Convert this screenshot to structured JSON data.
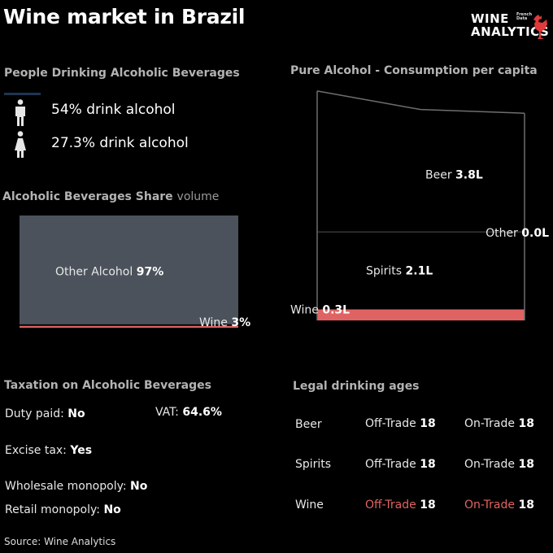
{
  "header": {
    "title": "Wine market in Brazil",
    "logo_line1": "WINE",
    "logo_line2": "ANALYTICS",
    "logo_tag1": "French",
    "logo_tag2": "Data",
    "logo_icon": "rooster-icon",
    "brand_color": "#e03a3a"
  },
  "drinkers": {
    "heading": "People Drinking Alcoholic Beverages",
    "male_icon": "man-icon",
    "female_icon": "woman-icon",
    "male_text": "54% drink alcohol",
    "female_text": "27.3% drink alcohol"
  },
  "share": {
    "heading": "Alcoholic Beverages Share",
    "heading_suffix": "volume"
  },
  "pure": {
    "heading": "Pure Alcohol - Consumption per capita"
  },
  "chart_data": [
    {
      "type": "area",
      "title": "Alcoholic Beverages Share volume",
      "categories": [
        "Other Alcohol",
        "Wine"
      ],
      "values": [
        97,
        3
      ],
      "labels": [
        {
          "name": "Other Alcohol",
          "value": "97%"
        },
        {
          "name": "Wine",
          "value": "3%"
        }
      ],
      "colors": {
        "Other Alcohol": "#4b525b",
        "Wine": "#e06363"
      }
    },
    {
      "type": "area",
      "title": "Pure Alcohol - Consumption per capita",
      "x": [
        0,
        1,
        2
      ],
      "series": [
        {
          "name": "Wine",
          "values": [
            0.3,
            0.3,
            0.3
          ],
          "label": "0.3L",
          "color": "#e06363"
        },
        {
          "name": "Spirits",
          "values": [
            2.1,
            2.1,
            2.1
          ],
          "label": "2.1L",
          "color": "#000000"
        },
        {
          "name": "Other",
          "values": [
            0.0,
            0.0,
            0.0
          ],
          "label": "0.0L",
          "color": "#000000"
        },
        {
          "name": "Beer",
          "values": [
            3.8,
            3.3,
            3.2
          ],
          "label": "3.8L",
          "color": "#000000"
        }
      ]
    }
  ],
  "tax": {
    "heading": "Taxation on Alcoholic Beverages",
    "duty_label": "Duty paid:",
    "duty_value": "No",
    "vat_label": "VAT:",
    "vat_value": "64.6%",
    "excise_label": "Excise tax:",
    "excise_value": "Yes",
    "wholesale_label": "Wholesale monopoly:",
    "wholesale_value": "No",
    "retail_label": "Retail monopoly:",
    "retail_value": "No"
  },
  "ages": {
    "heading": "Legal drinking ages",
    "rows": [
      {
        "name": "Beer",
        "off_label": "Off-Trade",
        "off_value": "18",
        "on_label": "On-Trade",
        "on_value": "18"
      },
      {
        "name": "Spirits",
        "off_label": "Off-Trade",
        "off_value": "18",
        "on_label": "On-Trade",
        "on_value": "18"
      },
      {
        "name": "Wine",
        "off_label": "Off-Trade",
        "off_value": "18",
        "on_label": "On-Trade",
        "on_value": "18"
      }
    ]
  },
  "source": "Source: Wine Analytics"
}
